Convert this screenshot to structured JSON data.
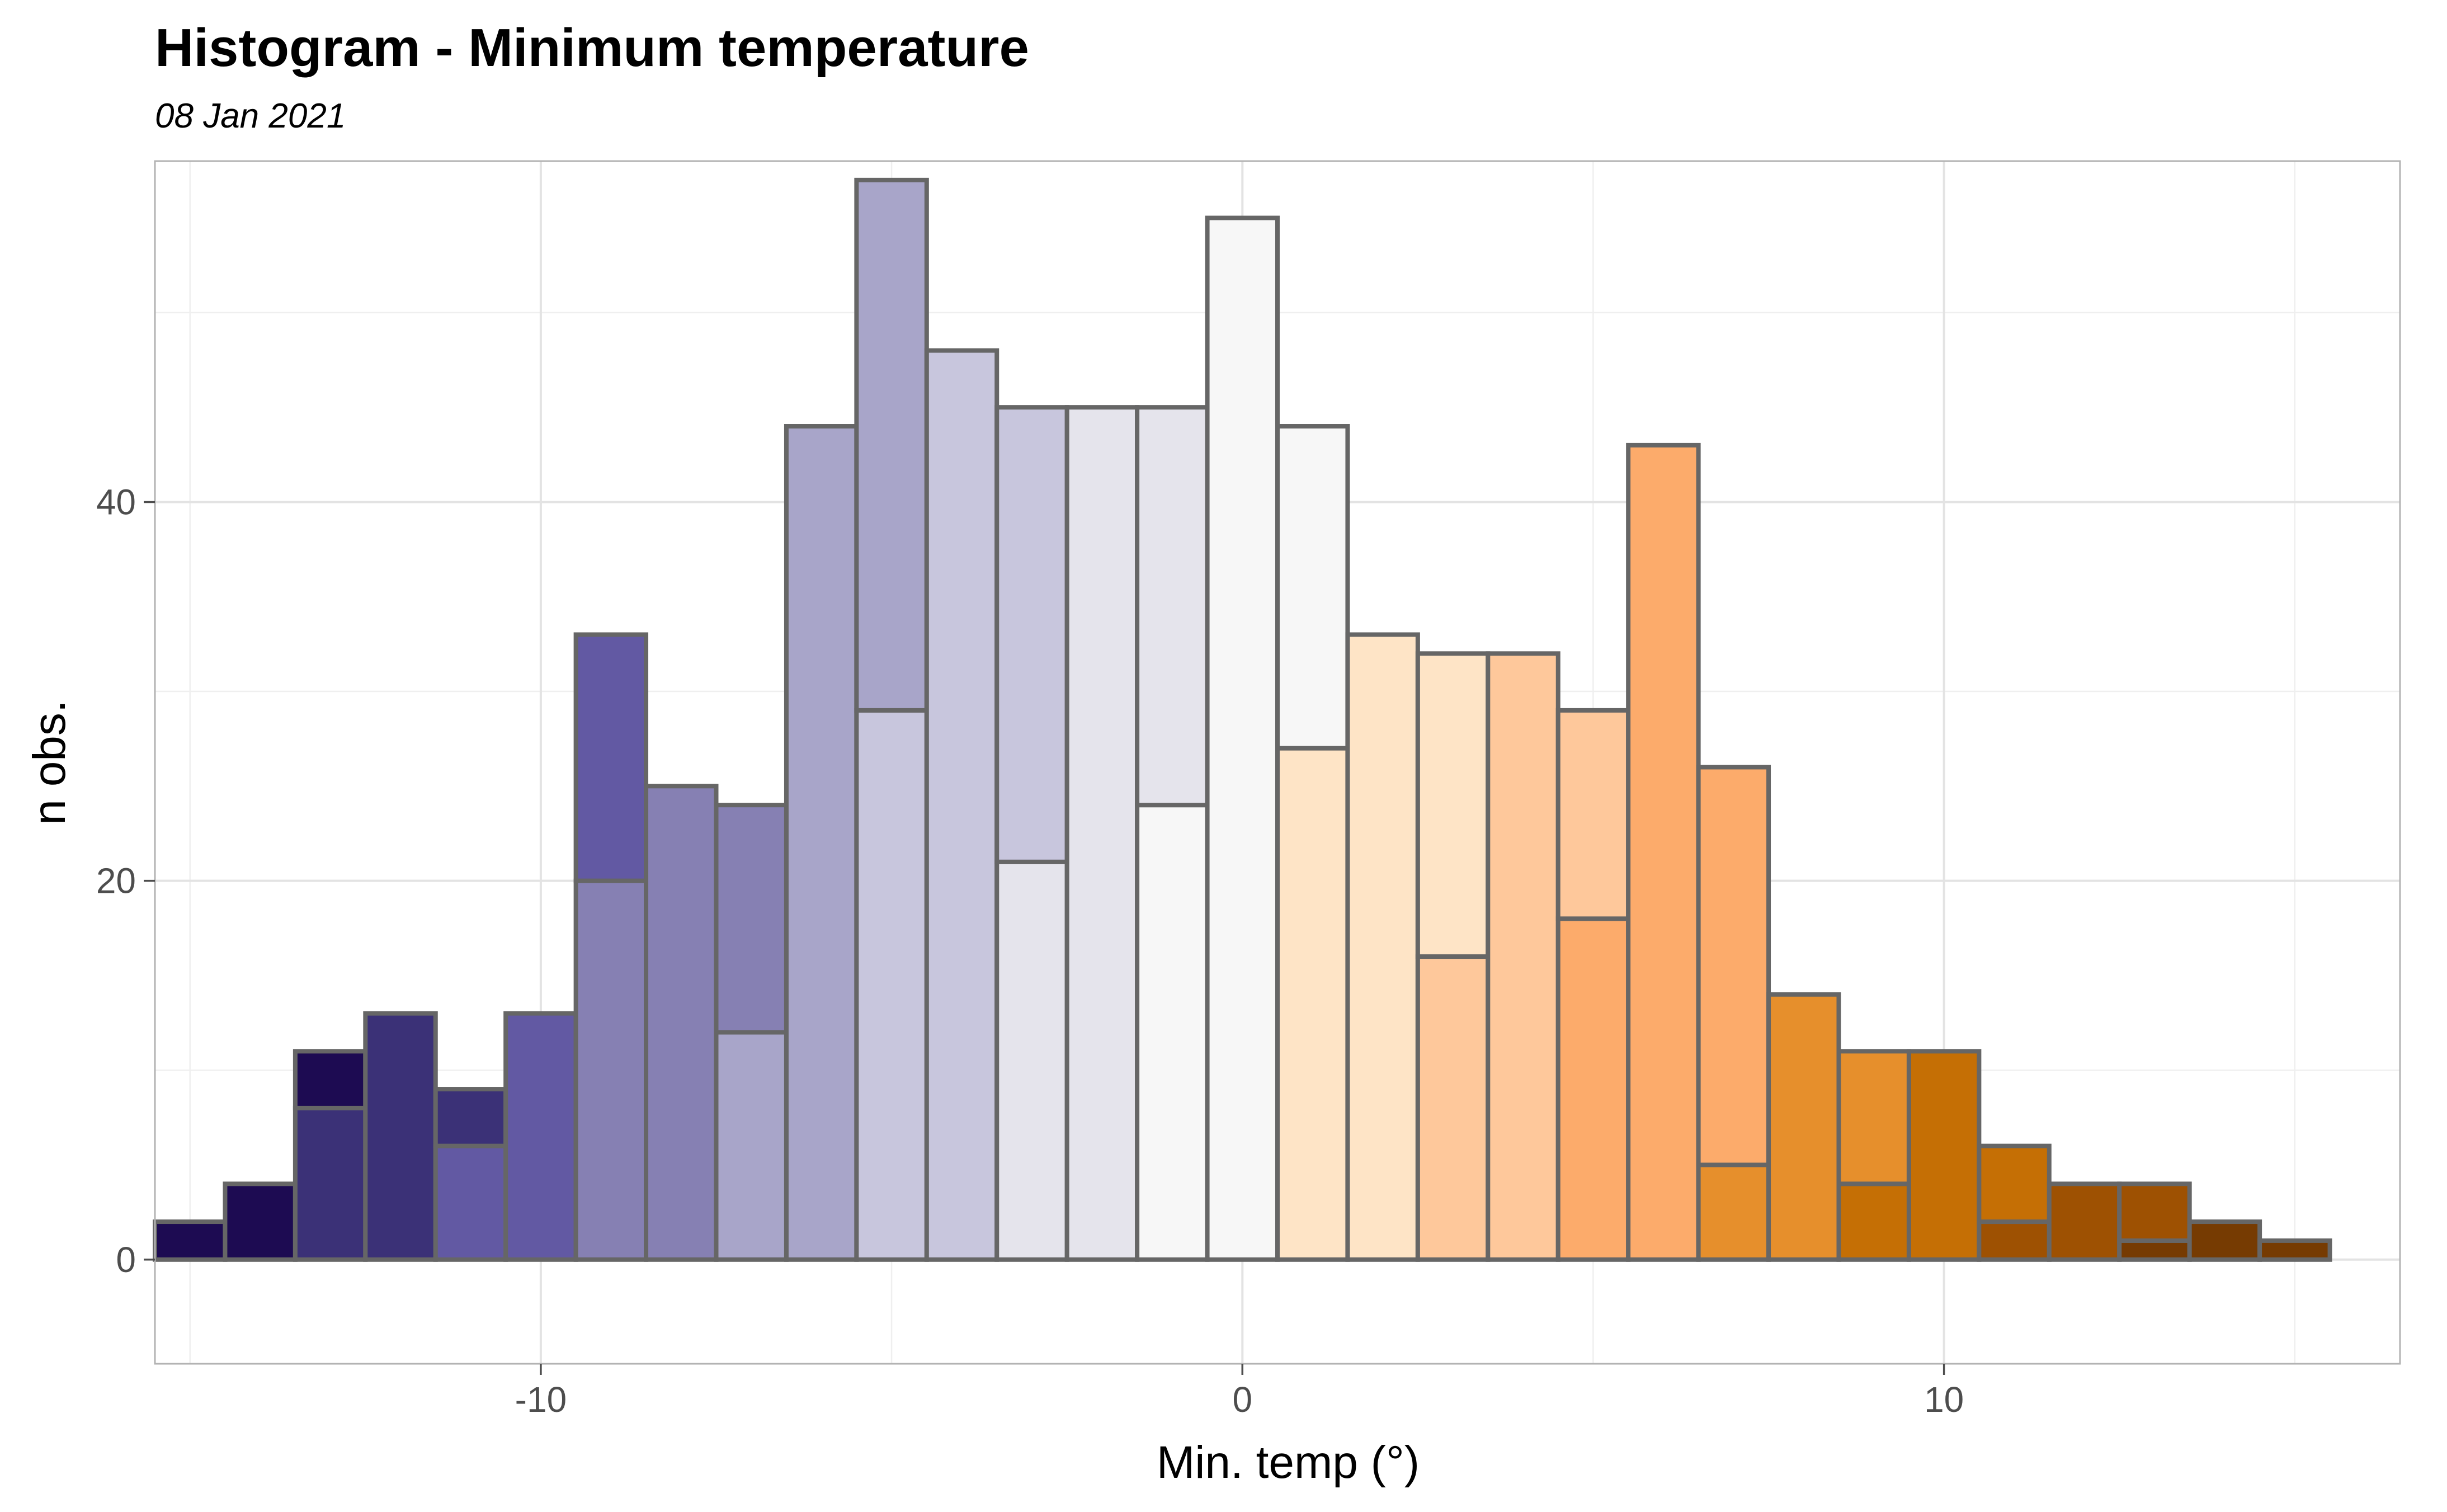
{
  "chart_data": {
    "type": "bar",
    "subtype": "stacked-histogram",
    "title": "Histogram - Minimum temperature",
    "subtitle": "08 Jan 2021",
    "xlabel": "Min. temp (°)",
    "ylabel": "n obs.",
    "xlim": [
      -15.5,
      16.5
    ],
    "ylim": [
      -5.5,
      58
    ],
    "x_ticks": [
      -10,
      0,
      10
    ],
    "y_ticks": [
      0,
      20,
      40
    ],
    "grid": true,
    "bin_width": 1,
    "bins": [
      {
        "x": -15,
        "segments": [
          {
            "count": 2,
            "color": "#1d0b52"
          }
        ]
      },
      {
        "x": -14,
        "segments": [
          {
            "count": 4,
            "color": "#1d0b52"
          }
        ]
      },
      {
        "x": -13,
        "segments": [
          {
            "count": 8,
            "color": "#3b3177"
          },
          {
            "count": 3,
            "color": "#1d0b52"
          }
        ]
      },
      {
        "x": -12,
        "segments": [
          {
            "count": 13,
            "color": "#3b3177"
          }
        ]
      },
      {
        "x": -11,
        "segments": [
          {
            "count": 6,
            "color": "#6259a3"
          },
          {
            "count": 3,
            "color": "#3b3177"
          }
        ]
      },
      {
        "x": -10,
        "segments": [
          {
            "count": 13,
            "color": "#6259a3"
          }
        ]
      },
      {
        "x": -9,
        "segments": [
          {
            "count": 20,
            "color": "#8680b3"
          },
          {
            "count": 13,
            "color": "#6259a3"
          }
        ]
      },
      {
        "x": -8,
        "segments": [
          {
            "count": 25,
            "color": "#8680b3"
          }
        ]
      },
      {
        "x": -7,
        "segments": [
          {
            "count": 12,
            "color": "#a8a5c9"
          },
          {
            "count": 12,
            "color": "#8680b3"
          }
        ]
      },
      {
        "x": -6,
        "segments": [
          {
            "count": 44,
            "color": "#a8a5c9"
          }
        ]
      },
      {
        "x": -5,
        "segments": [
          {
            "count": 29,
            "color": "#c8c6dd"
          },
          {
            "count": 28,
            "color": "#a8a5c9"
          }
        ]
      },
      {
        "x": -4,
        "segments": [
          {
            "count": 48,
            "color": "#c8c6dd"
          }
        ]
      },
      {
        "x": -3,
        "segments": [
          {
            "count": 21,
            "color": "#e5e4ec"
          },
          {
            "count": 24,
            "color": "#c8c6dd"
          }
        ]
      },
      {
        "x": -2,
        "segments": [
          {
            "count": 45,
            "color": "#e5e4ec"
          }
        ]
      },
      {
        "x": -1,
        "segments": [
          {
            "count": 24,
            "color": "#f7f7f7"
          },
          {
            "count": 21,
            "color": "#e5e4ec"
          }
        ]
      },
      {
        "x": 0,
        "segments": [
          {
            "count": 55,
            "color": "#f7f7f7"
          }
        ]
      },
      {
        "x": 1,
        "segments": [
          {
            "count": 27,
            "color": "#fee4c6"
          },
          {
            "count": 17,
            "color": "#f7f7f7"
          }
        ]
      },
      {
        "x": 2,
        "segments": [
          {
            "count": 33,
            "color": "#fee4c6"
          }
        ]
      },
      {
        "x": 3,
        "segments": [
          {
            "count": 16,
            "color": "#fec89b"
          },
          {
            "count": 16,
            "color": "#fee4c6"
          }
        ]
      },
      {
        "x": 4,
        "segments": [
          {
            "count": 32,
            "color": "#fec89b"
          }
        ]
      },
      {
        "x": 5,
        "segments": [
          {
            "count": 18,
            "color": "#fcab6b"
          },
          {
            "count": 11,
            "color": "#fec89b"
          }
        ]
      },
      {
        "x": 6,
        "segments": [
          {
            "count": 43,
            "color": "#fcab6b"
          }
        ]
      },
      {
        "x": 7,
        "segments": [
          {
            "count": 5,
            "color": "#e68f2c"
          },
          {
            "count": 21,
            "color": "#fcab6b"
          }
        ]
      },
      {
        "x": 8,
        "segments": [
          {
            "count": 14,
            "color": "#e68f2c"
          }
        ]
      },
      {
        "x": 9,
        "segments": [
          {
            "count": 4,
            "color": "#c56f05"
          },
          {
            "count": 7,
            "color": "#e68f2c"
          }
        ]
      },
      {
        "x": 10,
        "segments": [
          {
            "count": 11,
            "color": "#c56f05"
          }
        ]
      },
      {
        "x": 11,
        "segments": [
          {
            "count": 2,
            "color": "#9e5102"
          },
          {
            "count": 4,
            "color": "#c56f05"
          }
        ]
      },
      {
        "x": 12,
        "segments": [
          {
            "count": 4,
            "color": "#9e5102"
          }
        ]
      },
      {
        "x": 13,
        "segments": [
          {
            "count": 1,
            "color": "#763b02"
          },
          {
            "count": 3,
            "color": "#9e5102"
          }
        ]
      },
      {
        "x": 14,
        "segments": [
          {
            "count": 2,
            "color": "#763b02"
          }
        ]
      },
      {
        "x": 15,
        "segments": [
          {
            "count": 1,
            "color": "#763b02"
          }
        ]
      }
    ],
    "colors": {
      "background": "#ffffff",
      "grid_major": "#e3e3e3",
      "grid_minor": "#efefef",
      "bar_outline": "#666666",
      "panel_border": "#b3b3b3"
    }
  }
}
